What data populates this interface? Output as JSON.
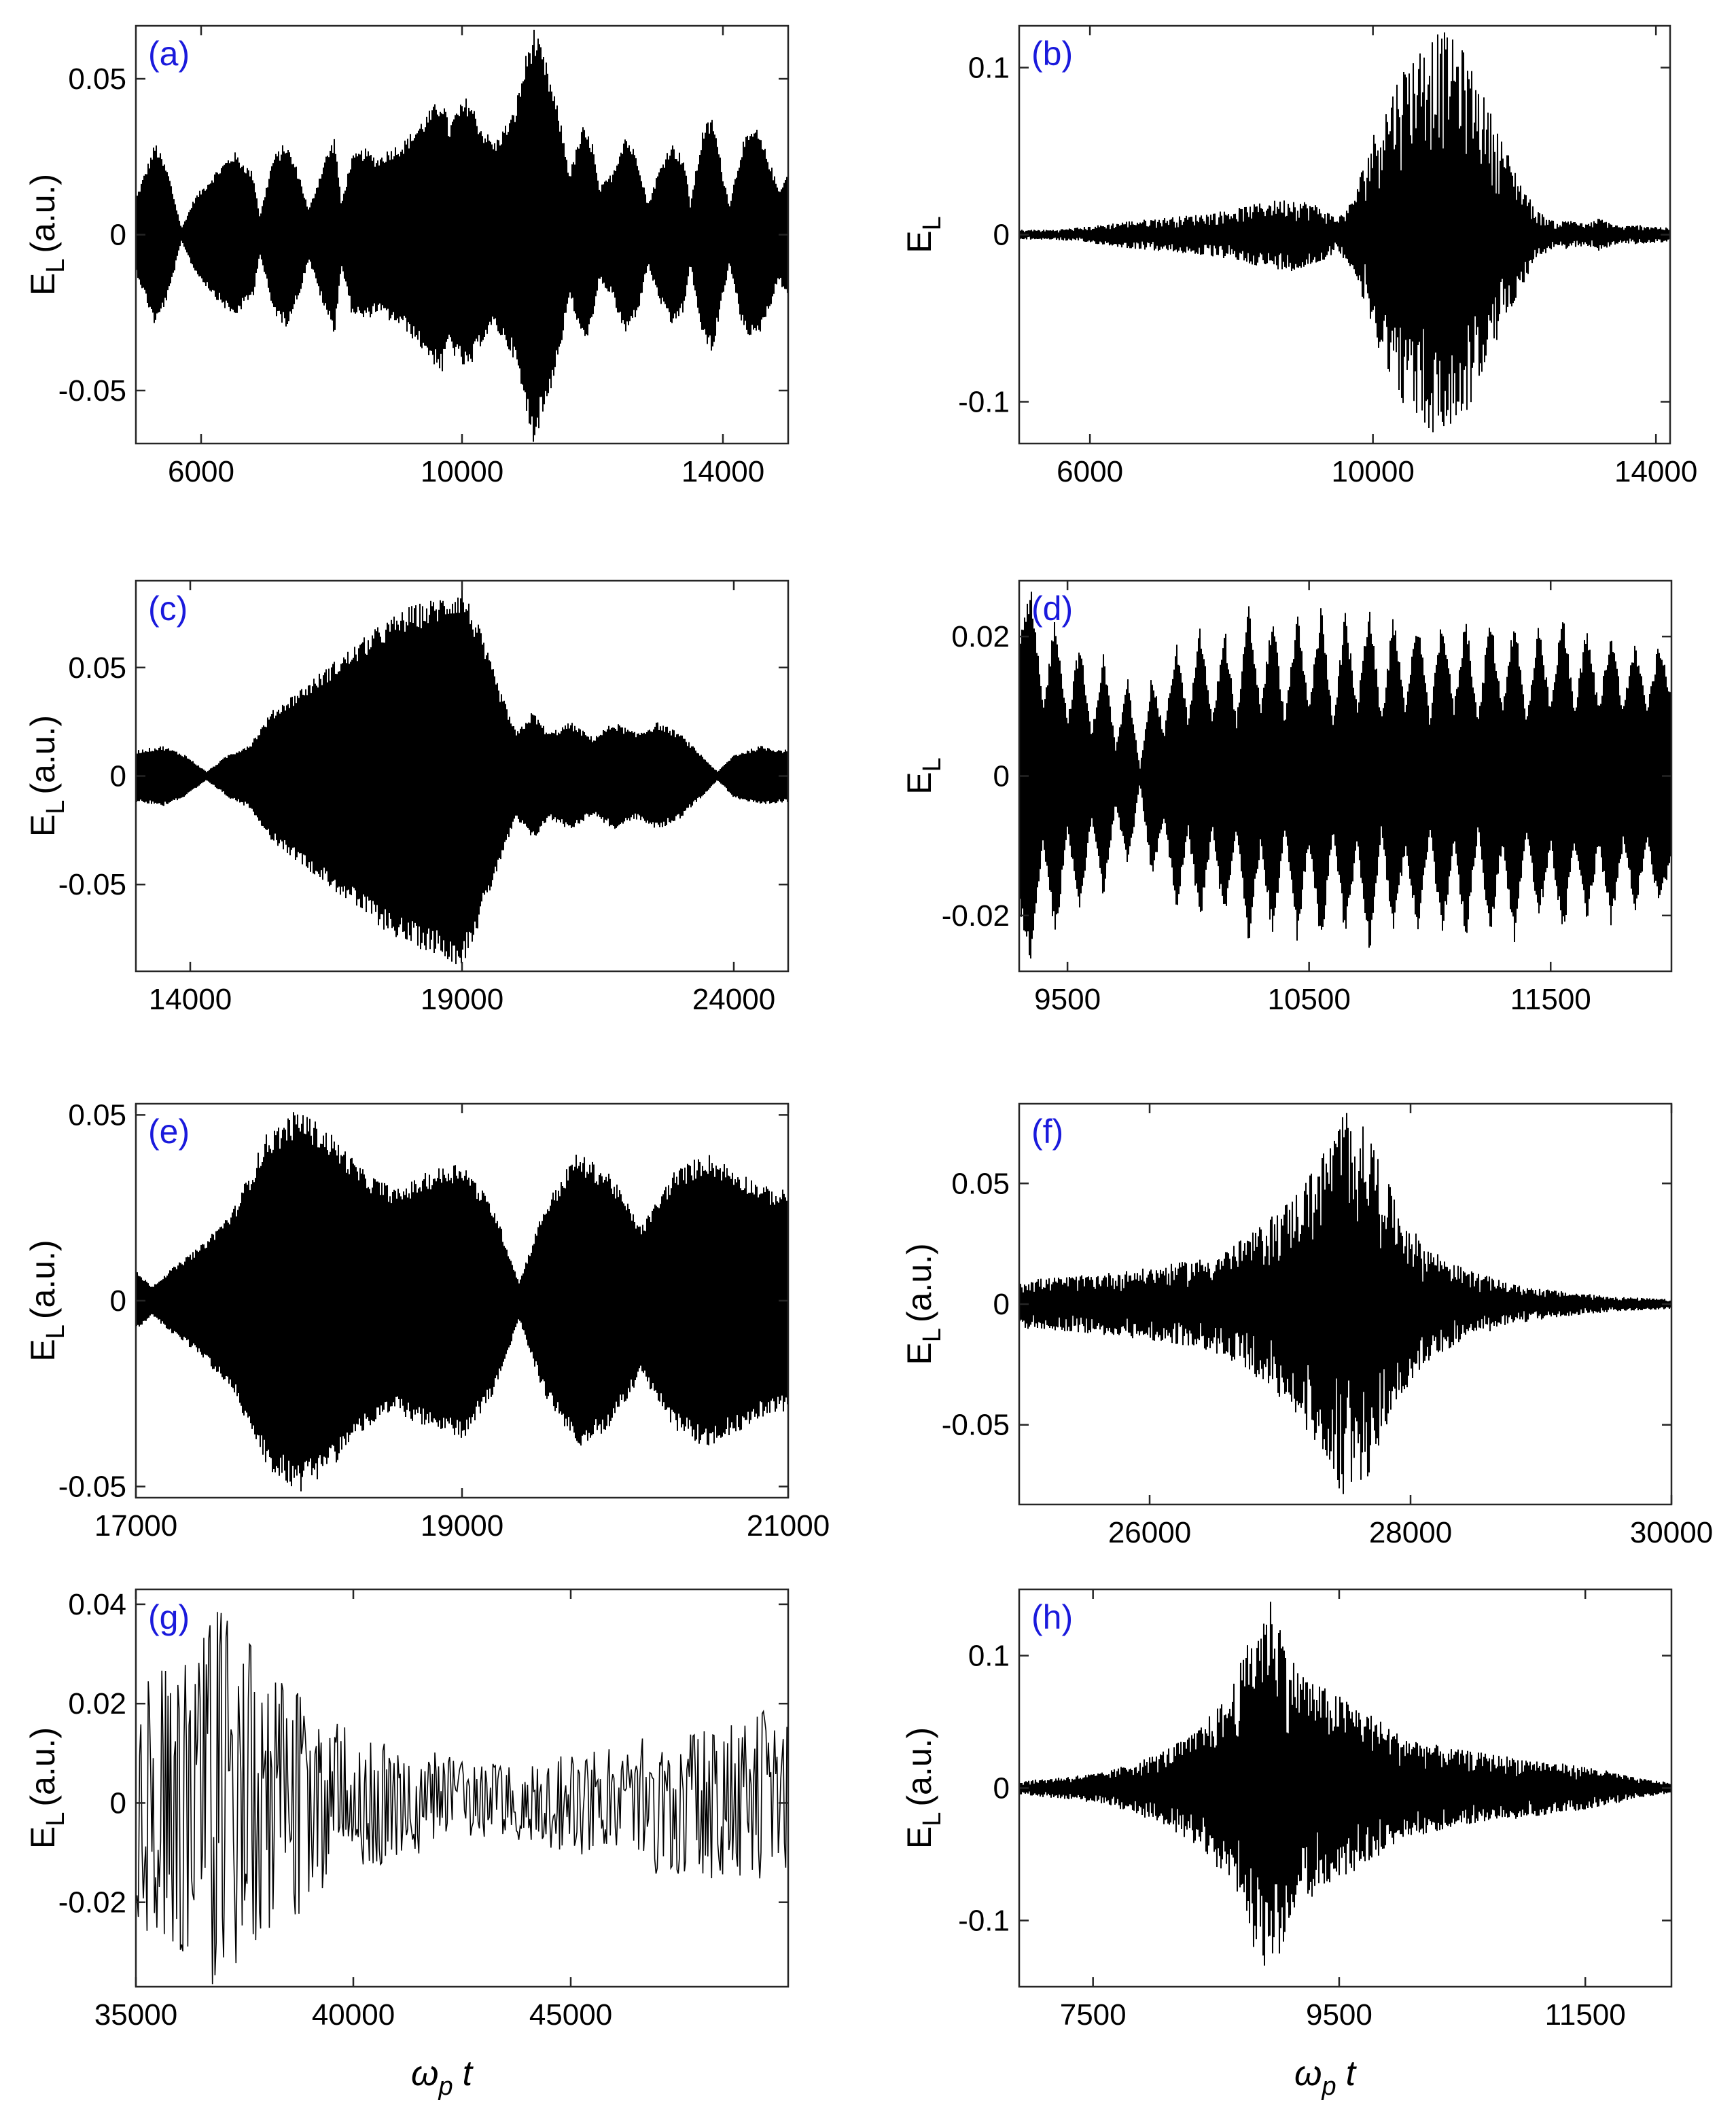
{
  "figure": {
    "colors": {
      "signal": "#000000",
      "panel_label": "#1a1adc",
      "axis": "#262626",
      "background": "#ffffff"
    }
  },
  "chart_data": [
    {
      "type": "line",
      "panel_label": "(a)",
      "ylabel_main": "E",
      "ylabel_sub": "L",
      "ylabel_unit": "(a.u.)",
      "xlabel": "",
      "xlim": [
        5000,
        15000
      ],
      "ylim": [
        -0.067,
        0.067
      ],
      "xticks": [
        {
          "v": 6000,
          "label": "6000"
        },
        {
          "v": 10000,
          "label": "10000"
        },
        {
          "v": 14000,
          "label": "14000"
        }
      ],
      "yticks": [
        {
          "v": -0.05,
          "label": "-0.05"
        },
        {
          "v": 0,
          "label": "0"
        },
        {
          "v": 0.05,
          "label": "0.05"
        }
      ],
      "style": "dense",
      "density": 0.6,
      "envelope": [
        [
          5000,
          0.012
        ],
        [
          5100,
          0.018
        ],
        [
          5300,
          0.03
        ],
        [
          5500,
          0.02
        ],
        [
          5700,
          0.002
        ],
        [
          5900,
          0.012
        ],
        [
          6200,
          0.02
        ],
        [
          6500,
          0.027
        ],
        [
          6800,
          0.02
        ],
        [
          6900,
          0.006
        ],
        [
          7100,
          0.025
        ],
        [
          7300,
          0.03
        ],
        [
          7500,
          0.02
        ],
        [
          7650,
          0.008
        ],
        [
          7900,
          0.025
        ],
        [
          8050,
          0.032
        ],
        [
          8150,
          0.01
        ],
        [
          8300,
          0.025
        ],
        [
          8500,
          0.028
        ],
        [
          8700,
          0.025
        ],
        [
          8900,
          0.028
        ],
        [
          9100,
          0.03
        ],
        [
          9300,
          0.035
        ],
        [
          9500,
          0.04
        ],
        [
          9700,
          0.045
        ],
        [
          9800,
          0.035
        ],
        [
          9900,
          0.04
        ],
        [
          10100,
          0.045
        ],
        [
          10300,
          0.035
        ],
        [
          10500,
          0.03
        ],
        [
          10800,
          0.04
        ],
        [
          11000,
          0.06
        ],
        [
          11100,
          0.067
        ],
        [
          11300,
          0.055
        ],
        [
          11500,
          0.038
        ],
        [
          11650,
          0.02
        ],
        [
          11850,
          0.035
        ],
        [
          12000,
          0.03
        ],
        [
          12100,
          0.015
        ],
        [
          12300,
          0.02
        ],
        [
          12500,
          0.033
        ],
        [
          12700,
          0.025
        ],
        [
          12850,
          0.01
        ],
        [
          13000,
          0.02
        ],
        [
          13200,
          0.03
        ],
        [
          13400,
          0.025
        ],
        [
          13500,
          0.01
        ],
        [
          13700,
          0.035
        ],
        [
          13850,
          0.038
        ],
        [
          14000,
          0.02
        ],
        [
          14100,
          0.01
        ],
        [
          14300,
          0.03
        ],
        [
          14500,
          0.035
        ],
        [
          14700,
          0.025
        ],
        [
          14850,
          0.015
        ],
        [
          15000,
          0.02
        ]
      ]
    },
    {
      "type": "line",
      "panel_label": "(b)",
      "ylabel_main": "E",
      "ylabel_sub": "L",
      "ylabel_unit": "",
      "xlabel": "",
      "xlim": [
        5000,
        14200
      ],
      "ylim": [
        -0.125,
        0.125
      ],
      "xticks": [
        {
          "v": 6000,
          "label": "6000"
        },
        {
          "v": 10000,
          "label": "10000"
        },
        {
          "v": 14000,
          "label": "14000"
        }
      ],
      "yticks": [
        {
          "v": -0.1,
          "label": "-0.1"
        },
        {
          "v": 0,
          "label": "0"
        },
        {
          "v": 0.1,
          "label": "0.1"
        }
      ],
      "style": "spiky",
      "density": 0.7,
      "envelope": [
        [
          5000,
          0.003
        ],
        [
          5500,
          0.003
        ],
        [
          6000,
          0.005
        ],
        [
          6500,
          0.008
        ],
        [
          7000,
          0.01
        ],
        [
          7500,
          0.012
        ],
        [
          8000,
          0.015
        ],
        [
          8500,
          0.02
        ],
        [
          8900,
          0.022
        ],
        [
          9200,
          0.018
        ],
        [
          9500,
          0.01
        ],
        [
          9700,
          0.02
        ],
        [
          10000,
          0.06
        ],
        [
          10400,
          0.1
        ],
        [
          10800,
          0.12
        ],
        [
          11000,
          0.122
        ],
        [
          11300,
          0.11
        ],
        [
          11600,
          0.08
        ],
        [
          12000,
          0.04
        ],
        [
          12300,
          0.015
        ],
        [
          12600,
          0.007
        ],
        [
          12800,
          0.01
        ],
        [
          13000,
          0.006
        ],
        [
          13200,
          0.01
        ],
        [
          13500,
          0.005
        ],
        [
          13800,
          0.006
        ],
        [
          14200,
          0.004
        ]
      ]
    },
    {
      "type": "line",
      "panel_label": "(c)",
      "ylabel_main": "E",
      "ylabel_sub": "L",
      "ylabel_unit": "(a.u.)",
      "xlabel": "",
      "xlim": [
        13000,
        25000
      ],
      "ylim": [
        -0.09,
        0.09
      ],
      "xticks": [
        {
          "v": 14000,
          "label": "14000"
        },
        {
          "v": 19000,
          "label": "19000"
        },
        {
          "v": 24000,
          "label": "24000"
        }
      ],
      "yticks": [
        {
          "v": -0.05,
          "label": "-0.05"
        },
        {
          "v": 0,
          "label": "0"
        },
        {
          "v": 0.05,
          "label": "0.05"
        }
      ],
      "style": "dense",
      "density": 0.6,
      "envelope": [
        [
          13000,
          0.012
        ],
        [
          13500,
          0.014
        ],
        [
          13900,
          0.01
        ],
        [
          14300,
          0.002
        ],
        [
          14700,
          0.01
        ],
        [
          15100,
          0.015
        ],
        [
          15500,
          0.03
        ],
        [
          16000,
          0.04
        ],
        [
          16500,
          0.05
        ],
        [
          17000,
          0.06
        ],
        [
          17500,
          0.07
        ],
        [
          18000,
          0.078
        ],
        [
          18500,
          0.082
        ],
        [
          19000,
          0.088
        ],
        [
          19300,
          0.07
        ],
        [
          19700,
          0.04
        ],
        [
          20000,
          0.02
        ],
        [
          20300,
          0.03
        ],
        [
          20600,
          0.02
        ],
        [
          21000,
          0.025
        ],
        [
          21400,
          0.018
        ],
        [
          21800,
          0.025
        ],
        [
          22200,
          0.02
        ],
        [
          22600,
          0.025
        ],
        [
          23000,
          0.02
        ],
        [
          23400,
          0.01
        ],
        [
          23700,
          0.002
        ],
        [
          24000,
          0.01
        ],
        [
          24500,
          0.014
        ],
        [
          25000,
          0.012
        ]
      ]
    },
    {
      "type": "line",
      "panel_label": "(d)",
      "ylabel_main": "E",
      "ylabel_sub": "L",
      "ylabel_unit": "",
      "xlabel": "",
      "xlim": [
        9300,
        12000
      ],
      "ylim": [
        -0.028,
        0.028
      ],
      "xticks": [
        {
          "v": 9500,
          "label": "9500"
        },
        {
          "v": 10500,
          "label": "10500"
        },
        {
          "v": 11500,
          "label": "11500"
        }
      ],
      "yticks": [
        {
          "v": -0.02,
          "label": "-0.02"
        },
        {
          "v": 0,
          "label": "0"
        },
        {
          "v": 0.02,
          "label": "0.02"
        }
      ],
      "style": "dense",
      "density": 0.7,
      "envelope": [
        [
          9300,
          0.02
        ],
        [
          9350,
          0.027
        ],
        [
          9400,
          0.01
        ],
        [
          9450,
          0.024
        ],
        [
          9500,
          0.008
        ],
        [
          9550,
          0.02
        ],
        [
          9600,
          0.006
        ],
        [
          9650,
          0.018
        ],
        [
          9700,
          0.004
        ],
        [
          9750,
          0.014
        ],
        [
          9800,
          0.001
        ],
        [
          9850,
          0.015
        ],
        [
          9900,
          0.006
        ],
        [
          9950,
          0.02
        ],
        [
          10000,
          0.008
        ],
        [
          10050,
          0.022
        ],
        [
          10100,
          0.008
        ],
        [
          10150,
          0.022
        ],
        [
          10200,
          0.008
        ],
        [
          10250,
          0.025
        ],
        [
          10300,
          0.01
        ],
        [
          10350,
          0.024
        ],
        [
          10400,
          0.008
        ],
        [
          10450,
          0.024
        ],
        [
          10500,
          0.01
        ],
        [
          10550,
          0.025
        ],
        [
          10600,
          0.008
        ],
        [
          10650,
          0.024
        ],
        [
          10700,
          0.01
        ],
        [
          10750,
          0.026
        ],
        [
          10800,
          0.008
        ],
        [
          10850,
          0.024
        ],
        [
          10900,
          0.01
        ],
        [
          10950,
          0.024
        ],
        [
          11000,
          0.008
        ],
        [
          11050,
          0.024
        ],
        [
          11100,
          0.01
        ],
        [
          11150,
          0.024
        ],
        [
          11200,
          0.008
        ],
        [
          11250,
          0.024
        ],
        [
          11300,
          0.01
        ],
        [
          11350,
          0.024
        ],
        [
          11400,
          0.008
        ],
        [
          11450,
          0.022
        ],
        [
          11500,
          0.01
        ],
        [
          11550,
          0.024
        ],
        [
          11600,
          0.01
        ],
        [
          11650,
          0.022
        ],
        [
          11700,
          0.01
        ],
        [
          11750,
          0.022
        ],
        [
          11800,
          0.01
        ],
        [
          11850,
          0.02
        ],
        [
          11900,
          0.01
        ],
        [
          11950,
          0.02
        ],
        [
          12000,
          0.012
        ]
      ]
    },
    {
      "type": "line",
      "panel_label": "(e)",
      "ylabel_main": "E",
      "ylabel_sub": "L",
      "ylabel_unit": "(a.u.)",
      "xlabel": "",
      "xlim": [
        17000,
        21000
      ],
      "ylim": [
        -0.053,
        0.053
      ],
      "xticks": [
        {
          "v": 17000,
          "label": "17000"
        },
        {
          "v": 19000,
          "label": "19000"
        },
        {
          "v": 21000,
          "label": "21000"
        }
      ],
      "yticks": [
        {
          "v": -0.05,
          "label": "-0.05"
        },
        {
          "v": 0,
          "label": "0"
        },
        {
          "v": 0.05,
          "label": "0.05"
        }
      ],
      "style": "dense",
      "density": 0.6,
      "envelope": [
        [
          17000,
          0.008
        ],
        [
          17100,
          0.004
        ],
        [
          17200,
          0.008
        ],
        [
          17400,
          0.015
        ],
        [
          17600,
          0.025
        ],
        [
          17800,
          0.045
        ],
        [
          18000,
          0.052
        ],
        [
          18200,
          0.045
        ],
        [
          18400,
          0.035
        ],
        [
          18600,
          0.03
        ],
        [
          18800,
          0.035
        ],
        [
          19000,
          0.038
        ],
        [
          19200,
          0.025
        ],
        [
          19350,
          0.005
        ],
        [
          19500,
          0.025
        ],
        [
          19700,
          0.04
        ],
        [
          19900,
          0.035
        ],
        [
          20100,
          0.02
        ],
        [
          20300,
          0.035
        ],
        [
          20500,
          0.04
        ],
        [
          20700,
          0.035
        ],
        [
          20900,
          0.03
        ],
        [
          21000,
          0.03
        ]
      ]
    },
    {
      "type": "line",
      "panel_label": "(f)",
      "ylabel_main": "E",
      "ylabel_sub": "L",
      "ylabel_unit": "(a.u.)",
      "xlabel": "",
      "xlim": [
        25000,
        30000
      ],
      "ylim": [
        -0.083,
        0.083
      ],
      "xticks": [
        {
          "v": 26000,
          "label": "26000"
        },
        {
          "v": 28000,
          "label": "28000"
        },
        {
          "v": 30000,
          "label": "30000"
        }
      ],
      "yticks": [
        {
          "v": -0.05,
          "label": "-0.05"
        },
        {
          "v": 0,
          "label": "0"
        },
        {
          "v": 0.05,
          "label": "0.05"
        }
      ],
      "style": "spiky",
      "density": 0.8,
      "envelope": [
        [
          25000,
          0.01
        ],
        [
          25500,
          0.012
        ],
        [
          26000,
          0.015
        ],
        [
          26500,
          0.02
        ],
        [
          26800,
          0.03
        ],
        [
          27100,
          0.045
        ],
        [
          27300,
          0.06
        ],
        [
          27500,
          0.082
        ],
        [
          27700,
          0.07
        ],
        [
          27900,
          0.04
        ],
        [
          28100,
          0.025
        ],
        [
          28400,
          0.015
        ],
        [
          28800,
          0.008
        ],
        [
          29200,
          0.005
        ],
        [
          29600,
          0.003
        ],
        [
          30000,
          0.002
        ]
      ]
    },
    {
      "type": "line",
      "panel_label": "(g)",
      "ylabel_main": "E",
      "ylabel_sub": "L",
      "ylabel_unit": "(a.u.)",
      "xlabel_main": "ω",
      "xlabel_sub": "p",
      "xlabel_tail": "t",
      "xlim": [
        35000,
        50000
      ],
      "ylim": [
        -0.037,
        0.043
      ],
      "xticks": [
        {
          "v": 35000,
          "label": "35000"
        },
        {
          "v": 40000,
          "label": "40000"
        },
        {
          "v": 45000,
          "label": "45000"
        }
      ],
      "yticks": [
        {
          "v": -0.02,
          "label": "-0.02"
        },
        {
          "v": 0,
          "label": "0"
        },
        {
          "v": 0.02,
          "label": "0.02"
        },
        {
          "v": 0.04,
          "label": "0.04"
        }
      ],
      "style": "sparse",
      "density": 0.85,
      "envelope": [
        [
          35000,
          0.025
        ],
        [
          36000,
          0.03
        ],
        [
          37000,
          0.04
        ],
        [
          38000,
          0.03
        ],
        [
          39000,
          0.02
        ],
        [
          40000,
          0.015
        ],
        [
          41000,
          0.012
        ],
        [
          42000,
          0.01
        ],
        [
          43000,
          0.008
        ],
        [
          44000,
          0.008
        ],
        [
          45000,
          0.01
        ],
        [
          46000,
          0.012
        ],
        [
          47000,
          0.015
        ],
        [
          48000,
          0.015
        ],
        [
          49000,
          0.018
        ],
        [
          50000,
          0.02
        ]
      ]
    },
    {
      "type": "line",
      "panel_label": "(h)",
      "ylabel_main": "E",
      "ylabel_sub": "L",
      "ylabel_unit": "(a.u.)",
      "xlabel_main": "ω",
      "xlabel_sub": "p",
      "xlabel_tail": "t",
      "xlim": [
        6900,
        12200
      ],
      "ylim": [
        -0.15,
        0.15
      ],
      "xticks": [
        {
          "v": 7500,
          "label": "7500"
        },
        {
          "v": 9500,
          "label": "9500"
        },
        {
          "v": 11500,
          "label": "11500"
        }
      ],
      "yticks": [
        {
          "v": -0.1,
          "label": "-0.1"
        },
        {
          "v": 0,
          "label": "0"
        },
        {
          "v": 0.1,
          "label": "0.1"
        }
      ],
      "style": "spiky",
      "density": 0.8,
      "envelope": [
        [
          6900,
          0.005
        ],
        [
          7200,
          0.008
        ],
        [
          7600,
          0.012
        ],
        [
          8000,
          0.025
        ],
        [
          8300,
          0.04
        ],
        [
          8600,
          0.07
        ],
        [
          8800,
          0.12
        ],
        [
          8960,
          0.148
        ],
        [
          9100,
          0.1
        ],
        [
          9300,
          0.08
        ],
        [
          9500,
          0.07
        ],
        [
          9700,
          0.06
        ],
        [
          10000,
          0.04
        ],
        [
          10400,
          0.03
        ],
        [
          10800,
          0.025
        ],
        [
          11200,
          0.02
        ],
        [
          11600,
          0.015
        ],
        [
          11900,
          0.008
        ],
        [
          12200,
          0.004
        ]
      ]
    }
  ]
}
